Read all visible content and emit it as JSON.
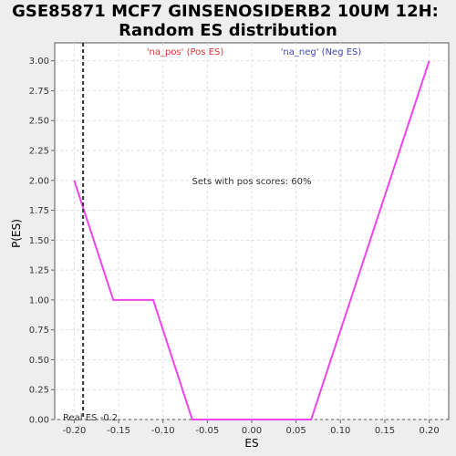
{
  "chart_data": {
    "type": "line",
    "title": "GSE85871 MCF7 GINSENOSIDERB2 10UM 12H: Random ES distribution",
    "title_lines": [
      "GSE85871 MCF7 GINSENOSIDERB2 10UM 12H:",
      "Random ES distribution"
    ],
    "xlabel": "ES",
    "ylabel": "P(ES)",
    "xlim": [
      -0.222,
      0.222
    ],
    "ylim": [
      0,
      3.15
    ],
    "xticks": [
      -0.2,
      -0.15,
      -0.1,
      -0.05,
      0.0,
      0.05,
      0.1,
      0.15,
      0.2
    ],
    "xtick_labels": [
      "-0.20",
      "-0.15",
      "-0.10",
      "-0.05",
      "0.00",
      "0.05",
      "0.10",
      "0.15",
      "0.20"
    ],
    "yticks": [
      0,
      0.25,
      0.5,
      0.75,
      1.0,
      1.25,
      1.5,
      1.75,
      2.0,
      2.25,
      2.5,
      2.75,
      3.0
    ],
    "ytick_labels": [
      "0.00",
      "0.25",
      "0.50",
      "0.75",
      "1.00",
      "1.25",
      "1.50",
      "1.75",
      "2.00",
      "2.25",
      "2.50",
      "2.75",
      "3.00"
    ],
    "grid": true,
    "series": [
      {
        "color": "#ee44ee",
        "x": [
          -0.2,
          -0.156,
          -0.111,
          -0.067,
          0.067,
          0.2
        ],
        "y": [
          2.0,
          1.0,
          1.0,
          0.0,
          0.0,
          3.0
        ]
      }
    ],
    "real_es": {
      "value": -0.19,
      "label": "Real ES -0.2",
      "color": "#333333"
    },
    "legend_entries": [
      {
        "label": "'na_pos' (Pos ES)",
        "color": "#dd3333"
      },
      {
        "label": "'na_neg' (Neg ES)",
        "color": "#4444bb"
      }
    ],
    "annotation": "Sets with pos scores: 60%",
    "plot_background": "#ffffff",
    "page_background": "#eeeeee"
  }
}
